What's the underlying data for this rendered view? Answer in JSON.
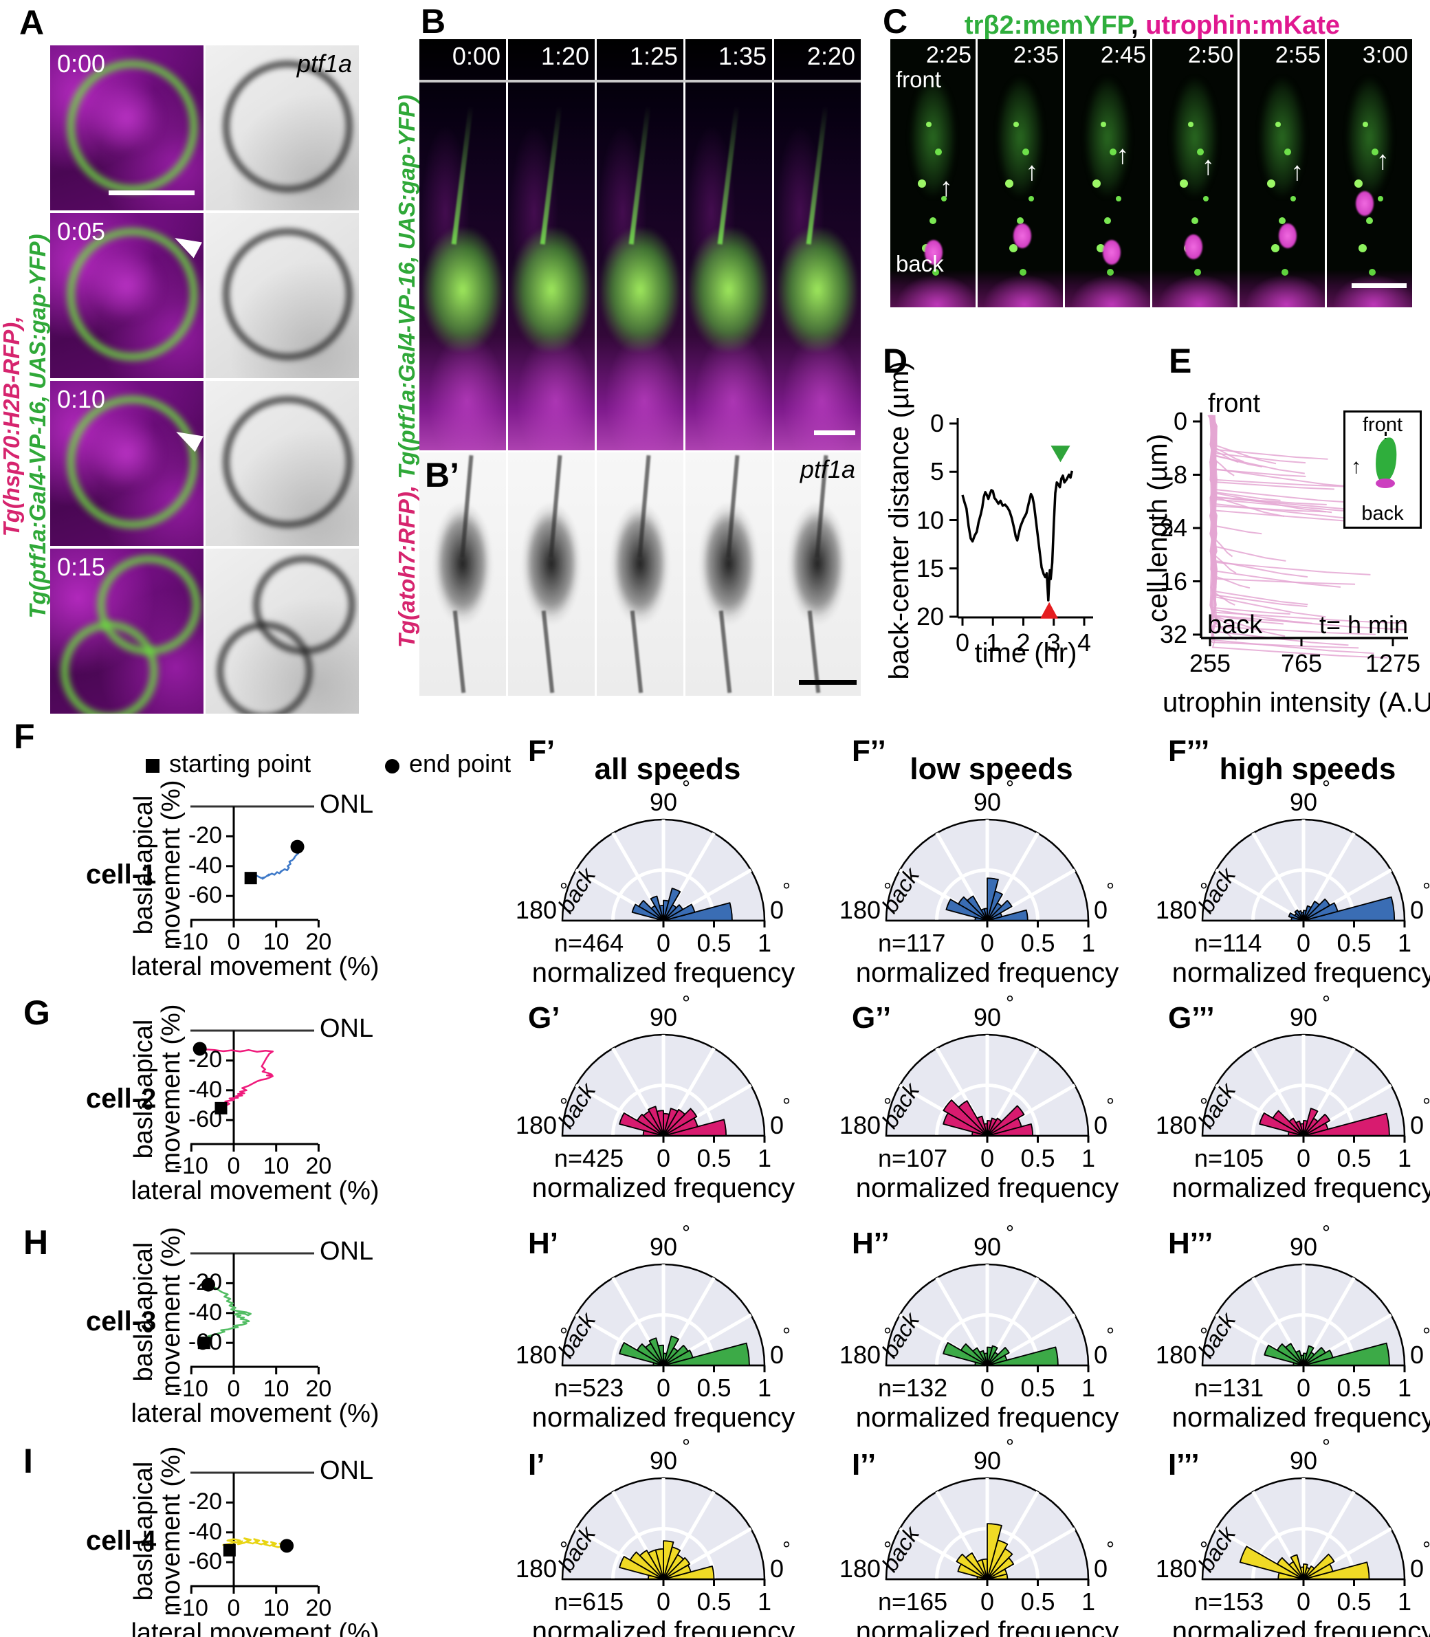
{
  "colors": {
    "rose_blue": "#3a6db4",
    "rose_magenta": "#d81b6f",
    "rose_green": "#3caa47",
    "rose_yellow": "#f0da25",
    "traj_blue": "#3e79c8",
    "traj_magenta": "#ef1a7b",
    "traj_green": "#52bd63",
    "traj_yellow": "#e8d413",
    "rose_bg": "#e7e8f1",
    "e_trace": "#e4a6d2",
    "green_arrow": "#2fa43a",
    "red_arrow": "#e51d20"
  },
  "panelA": {
    "label": "A",
    "timestamps": [
      "0:00",
      "0:05",
      "0:10",
      "0:15"
    ],
    "gene_red": "Tg(hsp70:H2B-RFP),",
    "gene_green": "Tg(ptf1a:Gal4-VP-16, UAS:gap-YFP)",
    "gray_tag": "ptf1a"
  },
  "panelB": {
    "label": "B",
    "prime_label": "B’",
    "timestamps": [
      "0:00",
      "1:20",
      "1:25",
      "1:35",
      "2:20"
    ],
    "gene_red": "Tg(atoh7:RFP), ",
    "gene_green": "Tg(ptf1a:Gal4-VP-16, UAS:gap-YFP)",
    "gray_tag": "ptf1a"
  },
  "panelC": {
    "label": "C",
    "title_green": "trβ2:memYFP",
    "title_comma": ", ",
    "title_magenta": "utrophin:mKate",
    "timestamps": [
      "2:25",
      "2:35",
      "2:45",
      "2:50",
      "2:55",
      "3:00"
    ],
    "front": "front",
    "back": "back"
  },
  "panelD": {
    "label": "D",
    "ylabel": "back-center distance (µm)",
    "xlabel": "time (hr)",
    "yticks": [
      "0",
      "5",
      "10",
      "15",
      "20"
    ],
    "xticks": [
      "0",
      "1",
      "2",
      "3",
      "4"
    ]
  },
  "panelE": {
    "label": "E",
    "ylabel": "cell length (µm)",
    "xlabel": "utrophin intensity (A.U.)",
    "yticks": [
      "0",
      "8",
      "24",
      "16",
      "32"
    ],
    "xticks": [
      "255",
      "765",
      "1275"
    ],
    "front": "front",
    "back": "back",
    "tnote": "t= h min",
    "inset_front": "front",
    "inset_back": "back"
  },
  "legend": {
    "start": "starting point",
    "end": "end point"
  },
  "traj": {
    "ylabel1": "basla-apical",
    "ylabel2": "movement (%)",
    "xlabel": "lateral movement (%)",
    "onl": "ONL",
    "yticks": [
      "-20",
      "-40",
      "-60"
    ],
    "xticks": [
      "-10",
      "0",
      "10",
      "20"
    ]
  },
  "rose_axis": {
    "deg90": "90",
    "deg180": "180",
    "deg0": "0",
    "degsym": "°",
    "back": "back",
    "xlabel": "normalized frequency",
    "ticks": [
      "0",
      "0.5",
      "1"
    ]
  },
  "row_titles": [
    "all speeds",
    "low speeds",
    "high speeds"
  ],
  "rows": [
    {
      "label": "F",
      "cell": "cell-1",
      "rose_labels": [
        "F’",
        "F’’",
        "F’’’"
      ],
      "n": [
        "n=464",
        "n=117",
        "n=114"
      ]
    },
    {
      "label": "G",
      "cell": "cell-2",
      "rose_labels": [
        "G’",
        "G’’",
        "G’’’"
      ],
      "n": [
        "n=425",
        "n=107",
        "n=105"
      ]
    },
    {
      "label": "H",
      "cell": "cell-3",
      "rose_labels": [
        "H’",
        "H’’",
        "H’’’"
      ],
      "n": [
        "n=523",
        "n=132",
        "n=131"
      ]
    },
    {
      "label": "I",
      "cell": "cell-4",
      "rose_labels": [
        "I’",
        "I’’",
        "I’’’"
      ],
      "n": [
        "n=615",
        "n=165",
        "n=153"
      ]
    }
  ],
  "chart_data": [
    {
      "type": "line",
      "panel": "D",
      "xlabel": "time (hr)",
      "ylabel": "back-center distance (µm)",
      "xlim": [
        0,
        4
      ],
      "ylim": [
        0,
        20
      ],
      "y_inverted": true,
      "points": [
        [
          0,
          7.4
        ],
        [
          0.07,
          8.2
        ],
        [
          0.13,
          8.8
        ],
        [
          0.2,
          10.6
        ],
        [
          0.27,
          11.9
        ],
        [
          0.33,
          12.2
        ],
        [
          0.4,
          11.6
        ],
        [
          0.47,
          11.2
        ],
        [
          0.53,
          10.2
        ],
        [
          0.6,
          9.4
        ],
        [
          0.65,
          8.7
        ],
        [
          0.7,
          7.6
        ],
        [
          0.75,
          7.1
        ],
        [
          0.8,
          7.4
        ],
        [
          0.85,
          7.8
        ],
        [
          0.9,
          7.3
        ],
        [
          0.95,
          6.9
        ],
        [
          1.0,
          7.0
        ],
        [
          1.05,
          7.7
        ],
        [
          1.1,
          7.9
        ],
        [
          1.18,
          8.3
        ],
        [
          1.25,
          8.0
        ],
        [
          1.32,
          8.5
        ],
        [
          1.4,
          8.4
        ],
        [
          1.48,
          8.7
        ],
        [
          1.55,
          9.1
        ],
        [
          1.62,
          9.8
        ],
        [
          1.7,
          10.9
        ],
        [
          1.75,
          11.7
        ],
        [
          1.8,
          12.1
        ],
        [
          1.85,
          11.4
        ],
        [
          1.9,
          10.7
        ],
        [
          2.0,
          9.9
        ],
        [
          2.1,
          9.3
        ],
        [
          2.18,
          8.2
        ],
        [
          2.25,
          7.3
        ],
        [
          2.3,
          7.6
        ],
        [
          2.35,
          8.4
        ],
        [
          2.42,
          10.2
        ],
        [
          2.5,
          12.3
        ],
        [
          2.55,
          13.6
        ],
        [
          2.6,
          14.9
        ],
        [
          2.67,
          15.6
        ],
        [
          2.72,
          15.9
        ],
        [
          2.77,
          15.5
        ],
        [
          2.82,
          18.3
        ],
        [
          2.87,
          15.2
        ],
        [
          2.9,
          16.1
        ],
        [
          2.95,
          14.4
        ],
        [
          3.0,
          10.5
        ],
        [
          3.05,
          7.2
        ],
        [
          3.1,
          6.1
        ],
        [
          3.15,
          6.3
        ],
        [
          3.2,
          6.6
        ],
        [
          3.25,
          5.7
        ],
        [
          3.3,
          5.4
        ],
        [
          3.35,
          6.1
        ],
        [
          3.42,
          5.8
        ],
        [
          3.5,
          5.3
        ],
        [
          3.55,
          5.6
        ],
        [
          3.6,
          4.9
        ]
      ],
      "annotations": [
        {
          "shape": "arrowhead-down",
          "color": "green",
          "t": 3.22,
          "d": 4.0
        },
        {
          "shape": "arrowhead-up",
          "color": "red",
          "t": 2.85,
          "d": 20.2
        }
      ]
    },
    {
      "type": "line",
      "panel": "E",
      "xlabel": "utrophin intensity (A.U.)",
      "ylabel": "cell length (µm)",
      "xticks": [
        255,
        765,
        1275
      ],
      "ylim": [
        0,
        32
      ],
      "ytick_labels_as_printed": [
        "0",
        "8",
        "24",
        "16",
        "32"
      ],
      "traces_procedural": true,
      "n_traces": 48,
      "seed": 9,
      "description": "~48 overlapping pink utrophin intensity profiles hugging the left axis (front, 0 um) and fanning rightward toward the back of the cell"
    },
    {
      "type": "scatter-path",
      "panel": "F",
      "series": "cell-1 trajectory",
      "start": [
        4,
        -48
      ],
      "end": [
        15,
        -27
      ],
      "points": [
        [
          4,
          -48
        ],
        [
          4.8,
          -46.5
        ],
        [
          4.4,
          -47.5
        ],
        [
          5.2,
          -46
        ],
        [
          5.8,
          -47
        ],
        [
          6.5,
          -48
        ],
        [
          7.2,
          -47.5
        ],
        [
          6.8,
          -48.5
        ],
        [
          7.6,
          -47
        ],
        [
          8.3,
          -45.5
        ],
        [
          8,
          -46.5
        ],
        [
          9,
          -45
        ],
        [
          9.6,
          -45.8
        ],
        [
          10.2,
          -44
        ],
        [
          10.8,
          -44.8
        ],
        [
          11.4,
          -43
        ],
        [
          11,
          -43.8
        ],
        [
          12,
          -42
        ],
        [
          12.6,
          -42.8
        ],
        [
          13,
          -41
        ],
        [
          12.7,
          -40
        ],
        [
          13.4,
          -38.5
        ],
        [
          13.1,
          -37
        ],
        [
          13.8,
          -36
        ],
        [
          14.3,
          -34.5
        ],
        [
          14,
          -35.5
        ],
        [
          14.6,
          -33
        ],
        [
          15.2,
          -31.5
        ],
        [
          14.9,
          -30
        ],
        [
          15.5,
          -29
        ],
        [
          15.1,
          -28
        ],
        [
          15.4,
          -27.5
        ],
        [
          15,
          -27
        ]
      ]
    },
    {
      "type": "scatter-path",
      "panel": "G",
      "series": "cell-2 trajectory",
      "start": [
        -3,
        -52
      ],
      "end": [
        -8,
        -12.2
      ],
      "points": [
        [
          -3,
          -52
        ],
        [
          -2,
          -50.5
        ],
        [
          -1,
          -49
        ],
        [
          -2,
          -47.5
        ],
        [
          0,
          -46.5
        ],
        [
          -1,
          -45.5
        ],
        [
          1,
          -45
        ],
        [
          0.5,
          -44
        ],
        [
          2,
          -43.5
        ],
        [
          1,
          -42.5
        ],
        [
          2.5,
          -42
        ],
        [
          1.5,
          -41
        ],
        [
          3,
          -40
        ],
        [
          2,
          -38.5
        ],
        [
          3.5,
          -37
        ],
        [
          4.5,
          -35.5
        ],
        [
          5.5,
          -34
        ],
        [
          6.5,
          -33
        ],
        [
          7.5,
          -32.5
        ],
        [
          8.5,
          -31.5
        ],
        [
          9.2,
          -30.5
        ],
        [
          7.8,
          -30
        ],
        [
          9,
          -29.5
        ],
        [
          8.2,
          -28.5
        ],
        [
          6.8,
          -27.5
        ],
        [
          7.4,
          -26
        ],
        [
          6.6,
          -24
        ],
        [
          7.2,
          -21
        ],
        [
          7.8,
          -18
        ],
        [
          8.4,
          -15.5
        ],
        [
          9.2,
          -14
        ],
        [
          7.5,
          -13.5
        ],
        [
          5.5,
          -14.2
        ],
        [
          3.5,
          -13
        ],
        [
          1.5,
          -14
        ],
        [
          -0.5,
          -13.2
        ],
        [
          -2.5,
          -13.8
        ],
        [
          -4.5,
          -13
        ],
        [
          -6.5,
          -12.6
        ],
        [
          -8,
          -12.2
        ]
      ]
    },
    {
      "type": "scatter-path",
      "panel": "H",
      "series": "cell-3 trajectory",
      "start": [
        -7,
        -60
      ],
      "end": [
        -6,
        -21
      ],
      "points": [
        [
          -7,
          -60
        ],
        [
          -6,
          -58.5
        ],
        [
          -5.2,
          -57
        ],
        [
          -6,
          -55.5
        ],
        [
          -4.6,
          -54.5
        ],
        [
          -3.4,
          -53.5
        ],
        [
          -2.2,
          -52.5
        ],
        [
          -3,
          -51.5
        ],
        [
          -1.4,
          -51
        ],
        [
          -0.2,
          -50
        ],
        [
          1,
          -49.5
        ],
        [
          0,
          -48.5
        ],
        [
          1.8,
          -48
        ],
        [
          3,
          -47
        ],
        [
          2.2,
          -46
        ],
        [
          3.6,
          -45.5
        ],
        [
          2.8,
          -44.5
        ],
        [
          1.6,
          -44
        ],
        [
          2.4,
          -43
        ],
        [
          0.8,
          -42.5
        ],
        [
          1.6,
          -41.5
        ],
        [
          0.2,
          -41
        ],
        [
          1.2,
          -40
        ],
        [
          2.6,
          -40.5
        ],
        [
          3.4,
          -41.5
        ],
        [
          4,
          -40.5
        ],
        [
          3,
          -39.5
        ],
        [
          1.8,
          -39
        ],
        [
          0.6,
          -38.5
        ],
        [
          -0.6,
          -37.5
        ],
        [
          0.4,
          -36.5
        ],
        [
          -1,
          -35
        ],
        [
          -0.2,
          -33.5
        ],
        [
          -1.6,
          -32
        ],
        [
          -0.8,
          -30.5
        ],
        [
          -2.2,
          -29
        ],
        [
          -1.4,
          -27.5
        ],
        [
          -2.8,
          -26
        ],
        [
          -3.6,
          -24.5
        ],
        [
          -4.4,
          -23
        ],
        [
          -5.2,
          -22
        ],
        [
          -6,
          -21
        ]
      ]
    },
    {
      "type": "scatter-path",
      "panel": "I",
      "series": "cell-4 trajectory",
      "start": [
        -1,
        -52
      ],
      "end": [
        12.5,
        -49
      ],
      "points": [
        [
          -1,
          -52
        ],
        [
          -2,
          -50.5
        ],
        [
          -0.5,
          -49.5
        ],
        [
          -2.5,
          -48.5
        ],
        [
          -1,
          -47.5
        ],
        [
          0.5,
          -46.5
        ],
        [
          -1.5,
          -45.5
        ],
        [
          0,
          -44.5
        ],
        [
          1.5,
          -45.5
        ],
        [
          0.5,
          -47
        ],
        [
          2,
          -46
        ],
        [
          1,
          -48
        ],
        [
          2.5,
          -47
        ],
        [
          3.5,
          -45.5
        ],
        [
          2.5,
          -44
        ],
        [
          4,
          -45
        ],
        [
          3,
          -46.5
        ],
        [
          4.5,
          -47.5
        ],
        [
          5.5,
          -46
        ],
        [
          4.8,
          -44.5
        ],
        [
          6,
          -45.5
        ],
        [
          5.2,
          -47
        ],
        [
          6.5,
          -48
        ],
        [
          7.5,
          -47
        ],
        [
          6.8,
          -45.5
        ],
        [
          8,
          -46.5
        ],
        [
          7.2,
          -48
        ],
        [
          8.5,
          -49
        ],
        [
          9.5,
          -48
        ],
        [
          8.8,
          -46.5
        ],
        [
          10,
          -47.5
        ],
        [
          9.2,
          -49
        ],
        [
          10.5,
          -50
        ],
        [
          11.5,
          -49
        ],
        [
          10.8,
          -47.5
        ],
        [
          12,
          -48.5
        ],
        [
          11.2,
          -50
        ],
        [
          12.5,
          -49
        ]
      ]
    },
    {
      "type": "rose",
      "panel": "F'",
      "title": "all speeds",
      "n": 464,
      "bin_deg": 15,
      "values": [
        0.68,
        0.32,
        0.22,
        0.18,
        0.33,
        0.2,
        0.15,
        0.25,
        0.17,
        0.28,
        0.32,
        0.06
      ]
    },
    {
      "type": "rose",
      "panel": "F''",
      "title": "low speeds",
      "n": 117,
      "bin_deg": 15,
      "values": [
        0.4,
        0.15,
        0.28,
        0.2,
        0.3,
        0.42,
        0.12,
        0.12,
        0.28,
        0.33,
        0.42,
        0.12
      ]
    },
    {
      "type": "rose",
      "panel": "F'''",
      "title": "high speeds",
      "n": 114,
      "bin_deg": 15,
      "values": [
        0.9,
        0.35,
        0.3,
        0.22,
        0.15,
        0.1,
        0.08,
        0.1,
        0.12,
        0.1,
        0.15,
        0.12
      ]
    },
    {
      "type": "rose",
      "panel": "G'",
      "n": 425,
      "bin_deg": 15,
      "values": [
        0.62,
        0.35,
        0.38,
        0.3,
        0.28,
        0.22,
        0.25,
        0.3,
        0.28,
        0.3,
        0.45,
        0.2
      ]
    },
    {
      "type": "rose",
      "panel": "G''",
      "n": 107,
      "bin_deg": 15,
      "values": [
        0.45,
        0.35,
        0.42,
        0.2,
        0.18,
        0.15,
        0.12,
        0.2,
        0.4,
        0.5,
        0.45,
        0.15
      ]
    },
    {
      "type": "rose",
      "panel": "G'''",
      "n": 105,
      "bin_deg": 15,
      "values": [
        0.85,
        0.25,
        0.3,
        0.2,
        0.28,
        0.15,
        0.12,
        0.15,
        0.2,
        0.35,
        0.45,
        0.15
      ]
    },
    {
      "type": "rose",
      "panel": "H'",
      "n": 523,
      "bin_deg": 15,
      "values": [
        0.85,
        0.3,
        0.28,
        0.2,
        0.3,
        0.12,
        0.2,
        0.28,
        0.25,
        0.3,
        0.45,
        0.1
      ]
    },
    {
      "type": "rose",
      "panel": "H''",
      "n": 132,
      "bin_deg": 15,
      "values": [
        0.7,
        0.2,
        0.25,
        0.15,
        0.2,
        0.18,
        0.12,
        0.15,
        0.2,
        0.3,
        0.45,
        0.12
      ]
    },
    {
      "type": "rose",
      "panel": "H'''",
      "n": 131,
      "bin_deg": 15,
      "values": [
        0.85,
        0.3,
        0.25,
        0.15,
        0.2,
        0.12,
        0.1,
        0.15,
        0.25,
        0.3,
        0.4,
        0.1
      ]
    },
    {
      "type": "rose",
      "panel": "I'",
      "n": 615,
      "bin_deg": 15,
      "values": [
        0.5,
        0.28,
        0.3,
        0.28,
        0.33,
        0.38,
        0.3,
        0.3,
        0.33,
        0.38,
        0.45,
        0.15
      ]
    },
    {
      "type": "rose",
      "panel": "I''",
      "n": 165,
      "bin_deg": 15,
      "values": [
        0.2,
        0.2,
        0.3,
        0.35,
        0.4,
        0.55,
        0.2,
        0.2,
        0.3,
        0.35,
        0.3,
        0.1
      ]
    },
    {
      "type": "rose",
      "panel": "I'''",
      "n": 153,
      "bin_deg": 15,
      "values": [
        0.65,
        0.3,
        0.35,
        0.15,
        0.12,
        0.15,
        0.12,
        0.25,
        0.2,
        0.3,
        0.65,
        0.25
      ]
    }
  ]
}
